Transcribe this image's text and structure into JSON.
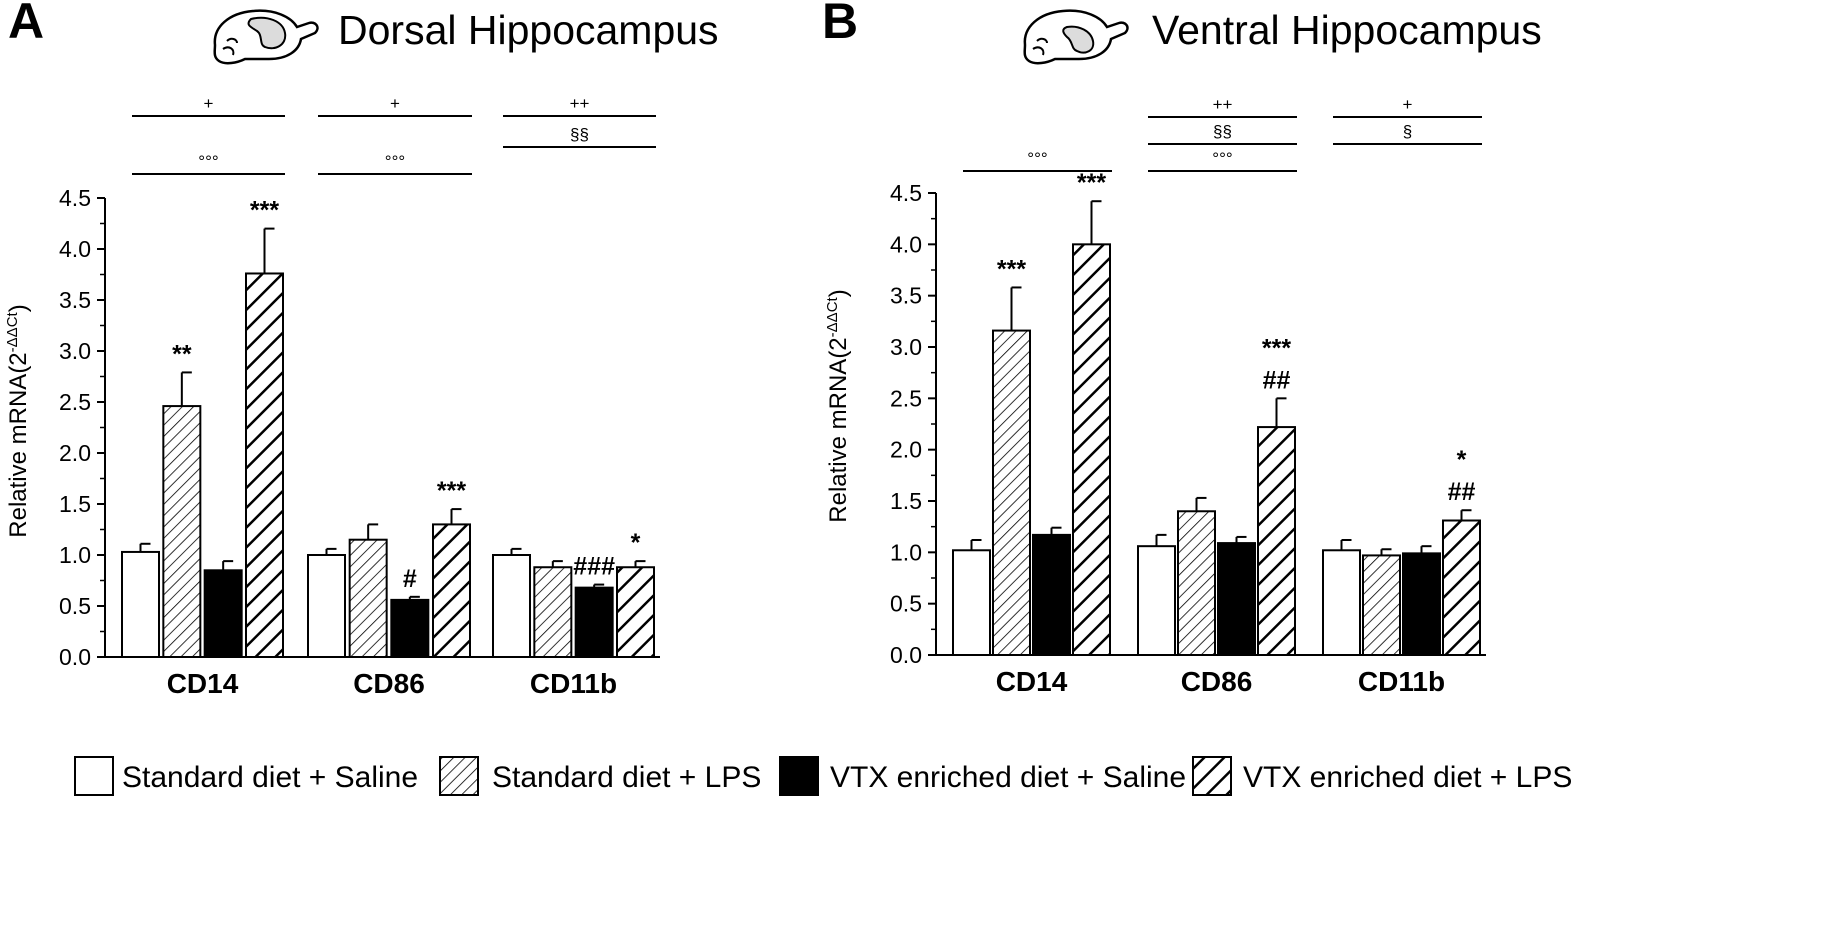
{
  "legend": [
    {
      "label": "Standard diet + Saline",
      "style": "white"
    },
    {
      "label": "Standard diet + LPS",
      "style": "hatch-thin"
    },
    {
      "label": "VTX enriched diet + Saline",
      "style": "black"
    },
    {
      "label": "VTX enriched diet + LPS",
      "style": "hatch-thick"
    }
  ],
  "colors": {
    "bar_fill_black": "#000000",
    "bar_fill_white": "#ffffff",
    "stroke": "#000000"
  },
  "brain_icon": "brain-sagittal-icon",
  "chart_data": [
    {
      "panel_letter": "A",
      "title": "Dorsal Hippocampus",
      "type": "bar",
      "ylabel_main": "Relative mRNA(2",
      "ylabel_sup": "-ΔΔCt",
      "ylabel_close": ")",
      "ylim": [
        0,
        4.5
      ],
      "yticks": [
        "0.0",
        "0.5",
        "1.0",
        "1.5",
        "2.0",
        "2.5",
        "3.0",
        "3.5",
        "4.0",
        "4.5"
      ],
      "categories": [
        "CD14",
        "CD86",
        "CD11b"
      ],
      "series": [
        {
          "name": "Standard diet + Saline",
          "values": [
            1.03,
            1.0,
            1.0
          ],
          "errors": [
            0.08,
            0.06,
            0.06
          ],
          "annotations": [
            "",
            "",
            ""
          ]
        },
        {
          "name": "Standard diet + LPS",
          "values": [
            2.46,
            1.15,
            0.88
          ],
          "errors": [
            0.33,
            0.15,
            0.06
          ],
          "annotations": [
            "**",
            "",
            ""
          ]
        },
        {
          "name": "VTX enriched diet + Saline",
          "values": [
            0.85,
            0.56,
            0.68
          ],
          "errors": [
            0.09,
            0.03,
            0.03
          ],
          "annotations": [
            "",
            "#",
            "###"
          ]
        },
        {
          "name": "VTX enriched diet + LPS",
          "values": [
            3.76,
            1.3,
            0.88
          ],
          "errors": [
            0.44,
            0.15,
            0.06
          ],
          "annotations": [
            "***",
            "***",
            "*"
          ]
        }
      ],
      "brackets": [
        {
          "category": 0,
          "symbols": [
            "+",
            "°°°"
          ]
        },
        {
          "category": 1,
          "symbols": [
            "+",
            "°°°"
          ]
        },
        {
          "category": 2,
          "symbols": [
            "++",
            "§§"
          ]
        }
      ]
    },
    {
      "panel_letter": "B",
      "title": "Ventral Hippocampus",
      "type": "bar",
      "ylabel_main": "Relative mRNA(2",
      "ylabel_sup": "-ΔΔCt",
      "ylabel_close": ")",
      "ylim": [
        0,
        4.5
      ],
      "yticks": [
        "0.0",
        "0.5",
        "1.0",
        "1.5",
        "2.0",
        "2.5",
        "3.0",
        "3.5",
        "4.0",
        "4.5"
      ],
      "categories": [
        "CD14",
        "CD86",
        "CD11b"
      ],
      "series": [
        {
          "name": "Standard diet + Saline",
          "values": [
            1.02,
            1.06,
            1.02
          ],
          "errors": [
            0.1,
            0.11,
            0.1
          ],
          "annotations": [
            "",
            "",
            ""
          ]
        },
        {
          "name": "Standard diet + LPS",
          "values": [
            3.16,
            1.4,
            0.97
          ],
          "errors": [
            0.42,
            0.13,
            0.06
          ],
          "annotations": [
            "***",
            "",
            ""
          ]
        },
        {
          "name": "VTX enriched diet + Saline",
          "values": [
            1.17,
            1.09,
            0.99
          ],
          "errors": [
            0.07,
            0.06,
            0.07
          ],
          "annotations": [
            "",
            "",
            ""
          ]
        },
        {
          "name": "VTX enriched diet + LPS",
          "values": [
            4.0,
            2.22,
            1.31
          ],
          "errors": [
            0.42,
            0.28,
            0.1
          ],
          "annotations": [
            "***",
            "***\n##",
            "*\n##"
          ]
        }
      ],
      "brackets": [
        {
          "category": 0,
          "symbols": [
            "°°°"
          ]
        },
        {
          "category": 1,
          "symbols": [
            "++",
            "§§",
            "°°°"
          ]
        },
        {
          "category": 2,
          "symbols": [
            "+",
            "§"
          ]
        }
      ]
    }
  ]
}
